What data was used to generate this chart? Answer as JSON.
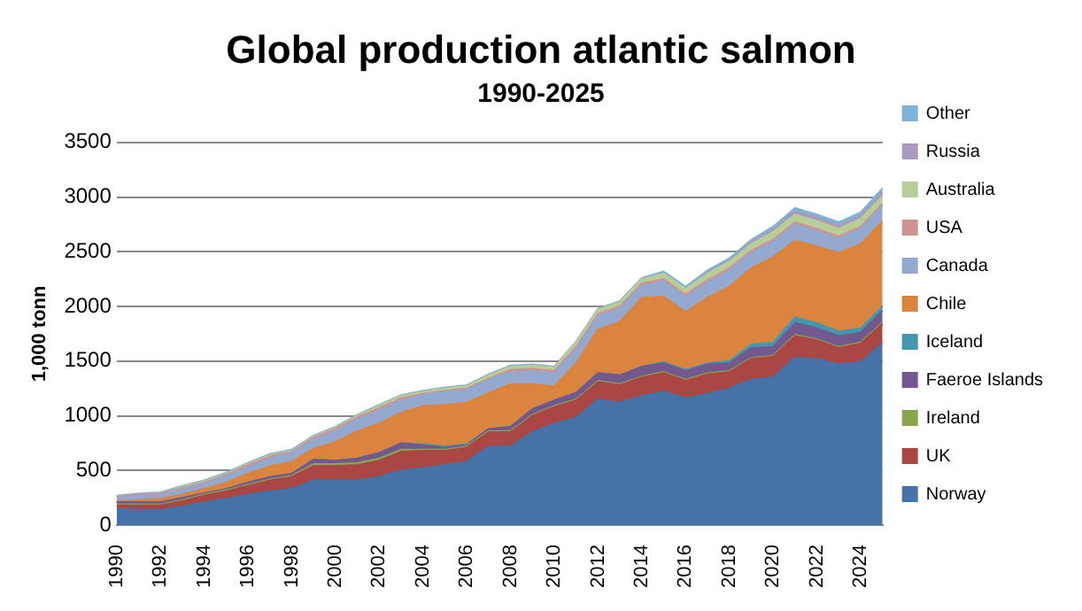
{
  "chart_data": {
    "type": "area",
    "stacked": true,
    "title": "Global production atlantic salmon",
    "subtitle": "1990-2025",
    "ylabel": "1,000 tonn",
    "categories": [
      "1990",
      null,
      "1992",
      null,
      "1994",
      null,
      "1996",
      null,
      "1998",
      null,
      "2000",
      null,
      "2002",
      null,
      "2004",
      null,
      "2006",
      null,
      "2008",
      null,
      "2010",
      null,
      "2012",
      null,
      "2014",
      null,
      "2016",
      null,
      "2018",
      null,
      "2020",
      null,
      "2022",
      null,
      "2024",
      null
    ],
    "ylim": [
      0,
      3500
    ],
    "yticks": [
      0,
      500,
      1000,
      1500,
      2000,
      2500,
      3000,
      3500
    ],
    "grid": "y",
    "legend": "right",
    "series": [
      {
        "name": "Norway",
        "color": "#4572a7",
        "values": [
          150,
          140,
          140,
          170,
          210,
          240,
          280,
          310,
          330,
          410,
          410,
          410,
          440,
          500,
          520,
          550,
          580,
          720,
          720,
          850,
          930,
          980,
          1150,
          1120,
          1180,
          1220,
          1160,
          1200,
          1250,
          1330,
          1350,
          1530,
          1520,
          1470,
          1490,
          1660
        ]
      },
      {
        "name": "UK",
        "color": "#aa4643",
        "values": [
          30,
          40,
          40,
          50,
          60,
          70,
          80,
          100,
          110,
          130,
          130,
          140,
          150,
          170,
          160,
          130,
          130,
          130,
          130,
          150,
          150,
          160,
          160,
          160,
          170,
          170,
          160,
          180,
          150,
          190,
          190,
          200,
          170,
          150,
          170,
          180
        ]
      },
      {
        "name": "Ireland",
        "color": "#89a54e",
        "values": [
          10,
          10,
          10,
          10,
          10,
          10,
          10,
          10,
          10,
          20,
          20,
          20,
          20,
          20,
          10,
          10,
          10,
          10,
          10,
          10,
          10,
          10,
          10,
          10,
          10,
          10,
          10,
          10,
          10,
          10,
          10,
          10,
          10,
          10,
          10,
          10
        ]
      },
      {
        "name": "Faeroe Islands",
        "color": "#71588f",
        "values": [
          20,
          20,
          20,
          20,
          10,
          10,
          20,
          20,
          20,
          40,
          30,
          40,
          50,
          60,
          40,
          20,
          10,
          20,
          40,
          50,
          50,
          60,
          70,
          80,
          90,
          80,
          80,
          80,
          70,
          90,
          80,
          110,
          100,
          100,
          90,
          110
        ]
      },
      {
        "name": "Iceland",
        "color": "#4198af",
        "values": [
          0,
          0,
          0,
          0,
          0,
          0,
          0,
          0,
          0,
          0,
          0,
          0,
          0,
          0,
          10,
          10,
          10,
          0,
          0,
          0,
          0,
          0,
          0,
          0,
          0,
          10,
          10,
          10,
          20,
          30,
          40,
          50,
          50,
          40,
          40,
          40
        ]
      },
      {
        "name": "Chile",
        "color": "#db843d",
        "values": [
          10,
          20,
          30,
          30,
          40,
          60,
          80,
          100,
          110,
          100,
          170,
          250,
          270,
          280,
          350,
          380,
          380,
          330,
          390,
          230,
          130,
          270,
          400,
          490,
          630,
          600,
          530,
          600,
          680,
          700,
          780,
          700,
          700,
          720,
          770,
          780
        ]
      },
      {
        "name": "Canada",
        "color": "#93a9cf",
        "values": [
          30,
          40,
          40,
          50,
          50,
          60,
          60,
          70,
          80,
          80,
          100,
          110,
          120,
          110,
          100,
          120,
          120,
          120,
          110,
          120,
          120,
          130,
          120,
          120,
          110,
          140,
          140,
          140,
          150,
          140,
          140,
          150,
          140,
          130,
          140,
          140
        ]
      },
      {
        "name": "USA",
        "color": "#d19392",
        "values": [
          10,
          10,
          10,
          10,
          10,
          10,
          20,
          20,
          10,
          20,
          20,
          20,
          20,
          20,
          10,
          10,
          10,
          10,
          20,
          20,
          20,
          20,
          20,
          20,
          20,
          20,
          20,
          20,
          20,
          20,
          20,
          20,
          20,
          20,
          20,
          20
        ]
      },
      {
        "name": "Australia",
        "color": "#b9cd96",
        "values": [
          0,
          0,
          0,
          10,
          10,
          10,
          10,
          10,
          10,
          10,
          10,
          10,
          20,
          20,
          20,
          20,
          20,
          30,
          30,
          30,
          30,
          40,
          40,
          40,
          40,
          50,
          50,
          60,
          60,
          60,
          70,
          70,
          70,
          70,
          70,
          70
        ]
      },
      {
        "name": "Russia",
        "color": "#a99bbd",
        "values": [
          0,
          0,
          0,
          0,
          0,
          0,
          0,
          0,
          0,
          0,
          0,
          0,
          0,
          0,
          0,
          0,
          0,
          0,
          0,
          0,
          0,
          0,
          0,
          0,
          0,
          0,
          0,
          10,
          10,
          20,
          20,
          30,
          30,
          30,
          30,
          30
        ]
      },
      {
        "name": "Other",
        "color": "#7eb2d8",
        "values": [
          10,
          10,
          10,
          10,
          10,
          10,
          10,
          10,
          10,
          10,
          10,
          10,
          10,
          10,
          10,
          10,
          10,
          10,
          10,
          10,
          10,
          10,
          10,
          10,
          10,
          20,
          20,
          20,
          20,
          20,
          30,
          30,
          30,
          30,
          30,
          40
        ]
      }
    ]
  }
}
